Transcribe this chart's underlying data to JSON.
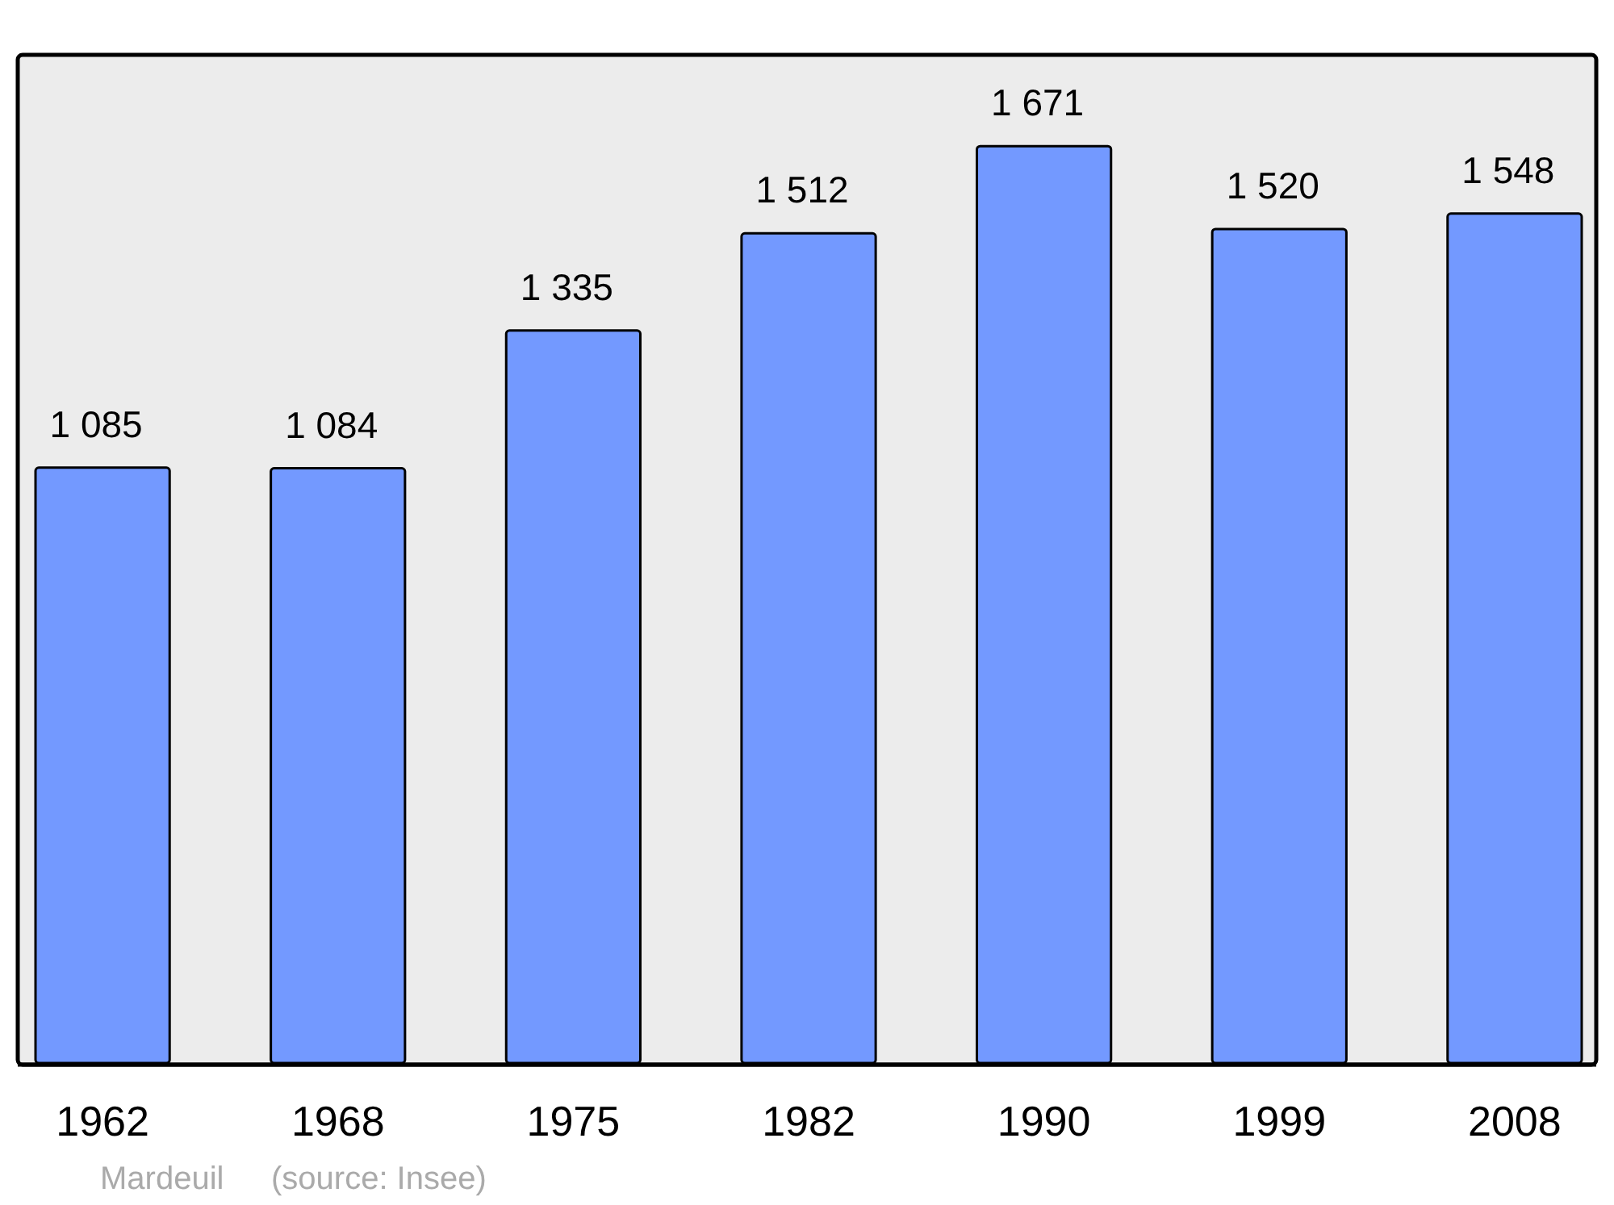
{
  "chart_data": {
    "type": "bar",
    "categories": [
      "1962",
      "1968",
      "1975",
      "1982",
      "1990",
      "1999",
      "2008"
    ],
    "values": [
      1085,
      1084,
      1335,
      1512,
      1671,
      1520,
      1548
    ],
    "value_labels": [
      "1 085",
      "1 084",
      "1 335",
      "1 512",
      "1 671",
      "1 520",
      "1 548"
    ],
    "color": "#7399ff",
    "annotations": [
      "Mardeuil",
      "(source: Insee)"
    ]
  }
}
